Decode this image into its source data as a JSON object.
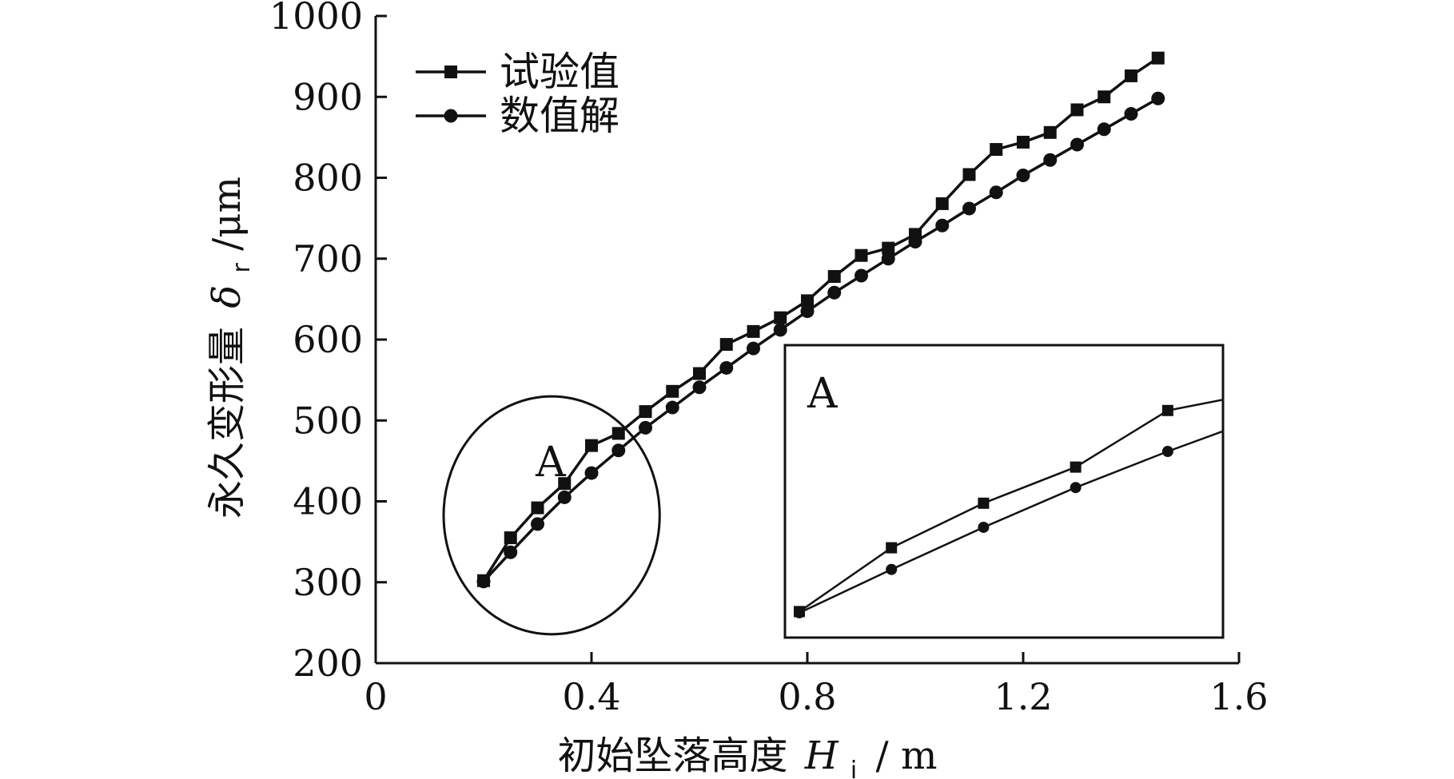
{
  "chart_data": {
    "type": "line",
    "title": "",
    "xlabel": "初始坠落高度",
    "xlabel_symbol": "H",
    "xlabel_subscript": "i",
    "xlabel_unit": "/ m",
    "ylabel": "永久变形量",
    "ylabel_symbol": "δ",
    "ylabel_subscript": "r",
    "ylabel_unit": "/μm",
    "xlim": [
      0,
      1.6
    ],
    "ylim": [
      200,
      1000
    ],
    "xticks": [
      "0",
      "0.4",
      "0.8",
      "1.2",
      "1.6"
    ],
    "yticks": [
      "200",
      "300",
      "400",
      "500",
      "600",
      "700",
      "800",
      "900",
      "1000"
    ],
    "grid": false,
    "legend_position": "top-left",
    "series": [
      {
        "name": "试验值",
        "marker": "square",
        "x": [
          0.2,
          0.25,
          0.3,
          0.35,
          0.4,
          0.45,
          0.5,
          0.55,
          0.6,
          0.65,
          0.7,
          0.75,
          0.8,
          0.85,
          0.9,
          0.95,
          1.0,
          1.05,
          1.1,
          1.15,
          1.2,
          1.25,
          1.3,
          1.35,
          1.4,
          1.45
        ],
        "values": [
          302,
          355,
          392,
          422,
          469,
          484,
          511,
          536,
          558,
          594,
          610,
          627,
          648,
          678,
          704,
          713,
          730,
          768,
          804,
          835,
          844,
          856,
          884,
          900,
          926,
          948
        ]
      },
      {
        "name": "数值解",
        "marker": "circle",
        "x": [
          0.2,
          0.25,
          0.3,
          0.35,
          0.4,
          0.45,
          0.5,
          0.55,
          0.6,
          0.65,
          0.7,
          0.75,
          0.8,
          0.85,
          0.9,
          0.95,
          1.0,
          1.05,
          1.1,
          1.15,
          1.2,
          1.25,
          1.3,
          1.35,
          1.4,
          1.45
        ],
        "values": [
          301,
          337,
          372,
          405,
          435,
          463,
          491,
          516,
          541,
          565,
          589,
          612,
          635,
          658,
          679,
          700,
          721,
          741,
          762,
          782,
          803,
          822,
          841,
          860,
          879,
          898
        ]
      }
    ],
    "annotations": {
      "region_label": "A",
      "inset_label": "A",
      "inset_x_range": [
        0.2,
        0.43
      ],
      "inset_y_range": [
        295,
        510
      ]
    }
  }
}
